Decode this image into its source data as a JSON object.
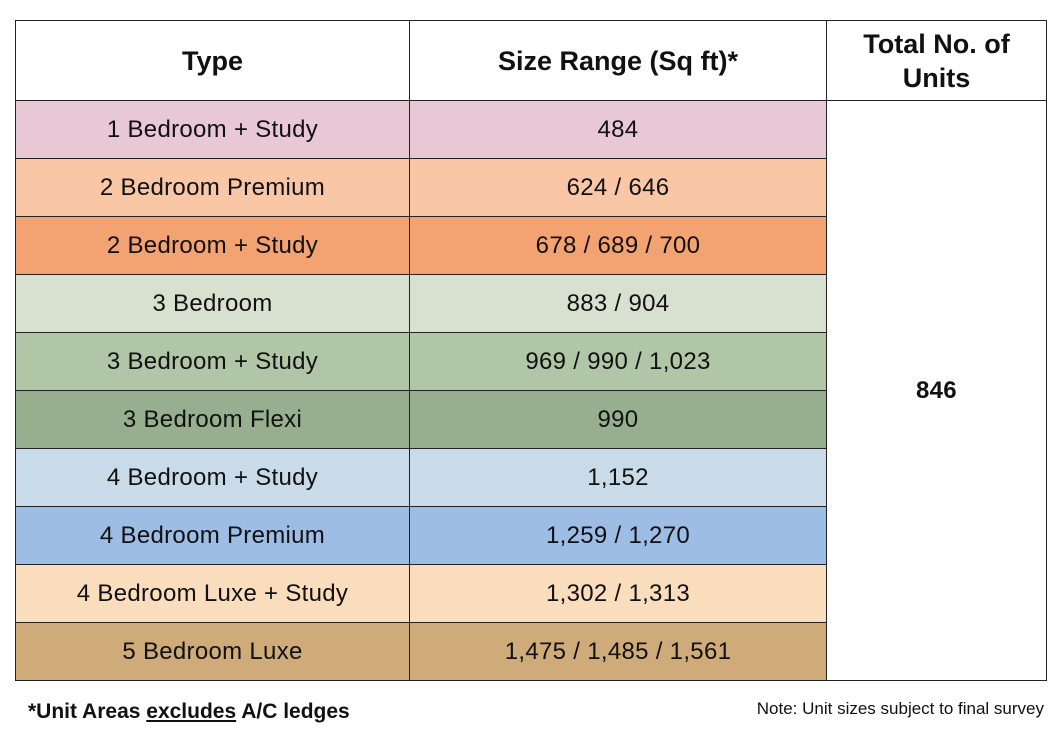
{
  "table": {
    "headers": {
      "type": "Type",
      "size_range": "Size Range (Sq ft)*",
      "total_units": "Total No. of Units"
    },
    "rows": [
      {
        "type": "1 Bedroom + Study",
        "size": "484",
        "color": "#e8c8d4"
      },
      {
        "type": "2 Bedroom Premium",
        "size": "624 / 646",
        "color": "#f9c7a6"
      },
      {
        "type": "2 Bedroom + Study",
        "size": "678 / 689 / 700",
        "color": "#f3a272"
      },
      {
        "type": "3 Bedroom",
        "size": "883 / 904",
        "color": "#d8e1cf"
      },
      {
        "type": "3 Bedroom + Study",
        "size": "969 / 990 / 1,023",
        "color": "#b1c6a7"
      },
      {
        "type": "3 Bedroom Flexi",
        "size": "990",
        "color": "#97af8f"
      },
      {
        "type": "4 Bedroom + Study",
        "size": "1,152",
        "color": "#c9dbe9"
      },
      {
        "type": "4 Bedroom Premium",
        "size": "1,259 / 1,270",
        "color": "#9ebde5"
      },
      {
        "type": "4 Bedroom Luxe + Study",
        "size": "1,302 / 1,313",
        "color": "#f9ddbd"
      },
      {
        "type": "5 Bedroom Luxe",
        "size": "1,475 / 1,485 / 1,561",
        "color": "#cfab7a"
      }
    ],
    "total_units": "846"
  },
  "footnote": {
    "prefix": "*Unit Areas ",
    "underlined": "excludes",
    "suffix": " A/C ledges"
  },
  "note": "Note: Unit sizes subject to final survey"
}
